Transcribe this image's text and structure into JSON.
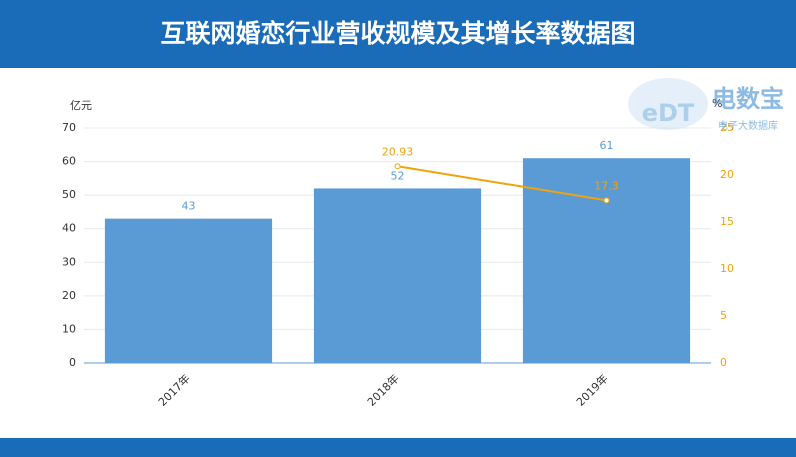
{
  "chart_data": {
    "type": "bar",
    "title": "互联网婚恋行业营收规模及其增长率数据图",
    "y_label": "亿元",
    "y2_label": "%",
    "categories": [
      "2017年",
      "2018年",
      "2019年"
    ],
    "series": [
      {
        "type": "bar",
        "color": "#5b9bd5",
        "values": [
          43,
          52,
          61
        ]
      },
      {
        "type": "line",
        "axis": "y2",
        "color": "#f0a30a",
        "values": [
          null,
          20.93,
          17.3
        ]
      }
    ],
    "ylim": [
      0,
      70
    ],
    "yticks": [
      0,
      10,
      20,
      30,
      40,
      50,
      60,
      70
    ],
    "y2lim": [
      0,
      25
    ],
    "y2ticks": [
      0,
      5,
      10,
      15,
      20,
      25
    ],
    "grid": true
  },
  "watermark": {
    "logo": "eDT",
    "brand": "电数宝",
    "tagline": "电子大数据库"
  }
}
